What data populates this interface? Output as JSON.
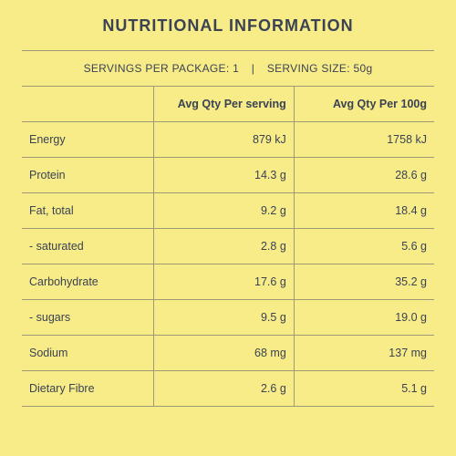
{
  "title": "NUTRITIONAL INFORMATION",
  "servings": {
    "per_package_label": "SERVINGS PER PACKAGE:",
    "per_package_value": "1",
    "size_label": "SERVING SIZE:",
    "size_value": "50g"
  },
  "table": {
    "type": "table",
    "background_color": "#f7ec88",
    "border_color": "#9d9a75",
    "text_color": "#3b4254",
    "title_fontsize": 18,
    "header_fontsize": 12.5,
    "body_fontsize": 12.5,
    "columns": [
      {
        "label": "",
        "align": "left",
        "width_pct": 32
      },
      {
        "label": "Avg Qty Per serving",
        "align": "right",
        "width_pct": 34
      },
      {
        "label": "Avg Qty Per 100g",
        "align": "right",
        "width_pct": 34
      }
    ],
    "rows": [
      {
        "label": "Energy",
        "per_serving": "879 kJ",
        "per_100g": "1758 kJ"
      },
      {
        "label": "Protein",
        "per_serving": "14.3 g",
        "per_100g": "28.6 g"
      },
      {
        "label": "Fat, total",
        "per_serving": "9.2 g",
        "per_100g": "18.4 g"
      },
      {
        "label": "- saturated",
        "per_serving": "2.8 g",
        "per_100g": "5.6 g"
      },
      {
        "label": "Carbohydrate",
        "per_serving": "17.6 g",
        "per_100g": "35.2 g"
      },
      {
        "label": "- sugars",
        "per_serving": "9.5 g",
        "per_100g": "19.0 g"
      },
      {
        "label": "Sodium",
        "per_serving": "68 mg",
        "per_100g": "137 mg"
      },
      {
        "label": "Dietary Fibre",
        "per_serving": "2.6 g",
        "per_100g": "5.1 g"
      }
    ]
  }
}
